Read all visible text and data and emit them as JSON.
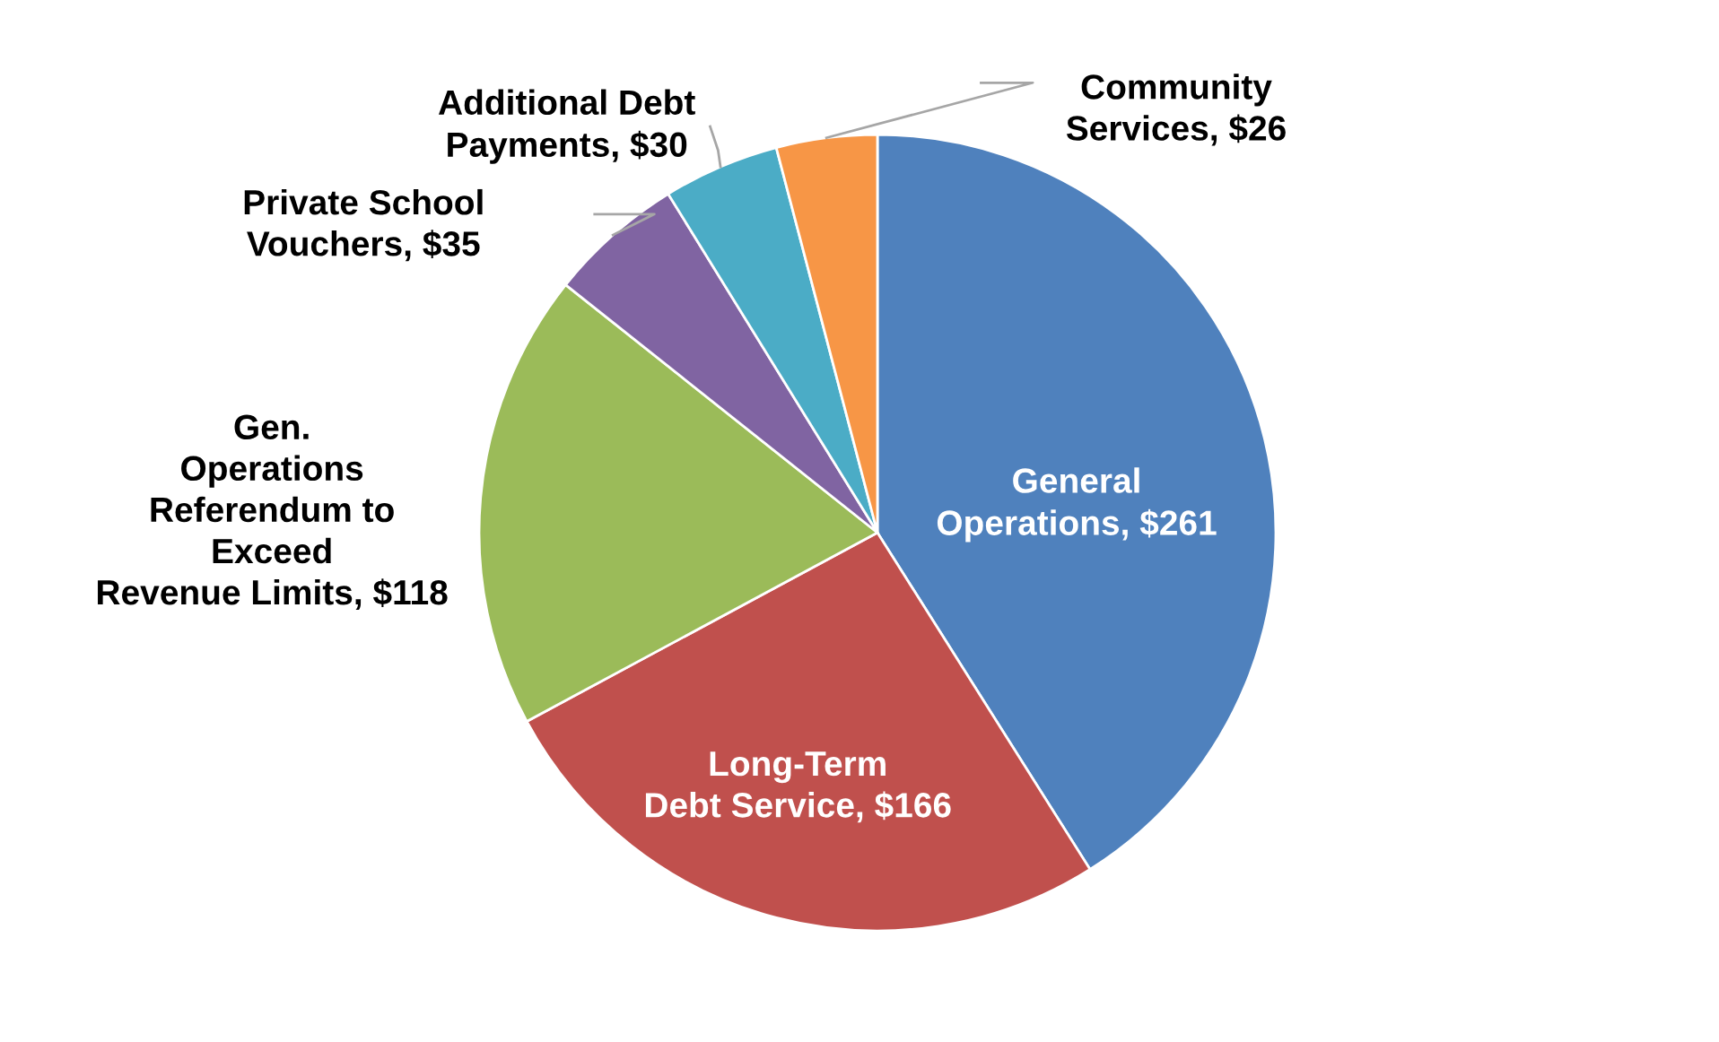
{
  "chart_data": {
    "type": "pie",
    "categories": [
      "General\nOperations",
      "Long-Term\nDebt Service",
      "Gen.\nOperations\nReferendum to\nExceed\nRevenue Limits",
      "Private School\nVouchers",
      "Additional Debt\nPayments",
      "Community\nServices"
    ],
    "values": [
      261,
      166,
      118,
      35,
      30,
      26
    ],
    "value_labels": [
      "$261",
      "$166",
      "$118",
      "$35",
      "$30",
      "$26"
    ],
    "colors": [
      "#4f81bd",
      "#c0504d",
      "#9bbb59",
      "#8064a2",
      "#4bacc6",
      "#f79646"
    ],
    "legend": false
  }
}
